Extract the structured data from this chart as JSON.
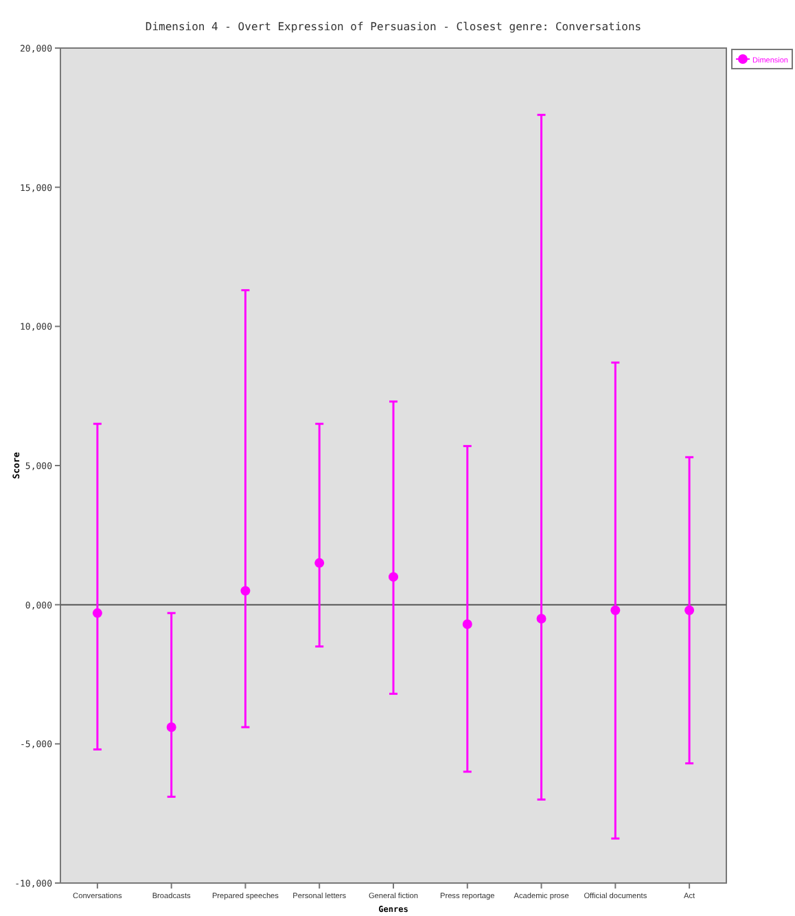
{
  "chart_data": {
    "type": "scatter",
    "title": "Dimension 4 - Overt Expression of Persuasion - Closest genre: Conversations",
    "xlabel": "Genres",
    "ylabel": "Score",
    "categories": [
      "Conversations",
      "Broadcasts",
      "Prepared speeches",
      "Personal letters",
      "General fiction",
      "Press reportage",
      "Academic prose",
      "Official documents",
      "Act"
    ],
    "series": [
      {
        "name": "Dimension",
        "color": "#ff00ff",
        "values": [
          -300,
          -4400,
          500,
          1500,
          1000,
          -700,
          -500,
          -200,
          -200
        ],
        "errors": [
          [
            -5200,
            6500
          ],
          [
            -6900,
            -300
          ],
          [
            -4400,
            11300
          ],
          [
            -1500,
            6500
          ],
          [
            -3200,
            7300
          ],
          [
            -6000,
            5700
          ],
          [
            -7000,
            17600
          ],
          [
            -8400,
            8700
          ],
          [
            -5700,
            5300
          ]
        ]
      }
    ],
    "ylim": [
      -10000,
      20000
    ],
    "yticks": [
      {
        "value": -10000,
        "label": "-10,000"
      },
      {
        "value": -5000,
        "label": "-5,000"
      },
      {
        "value": 0,
        "label": "0,000"
      },
      {
        "value": 5000,
        "label": "5,000"
      },
      {
        "value": 10000,
        "label": "10,000"
      },
      {
        "value": 15000,
        "label": "15,000"
      },
      {
        "value": 20000,
        "label": "20,000"
      }
    ],
    "ref_lines": [
      {
        "axis": "y",
        "value": 0,
        "color": "#555555"
      }
    ],
    "marker": "circle",
    "legend": "top right",
    "grid": false
  }
}
